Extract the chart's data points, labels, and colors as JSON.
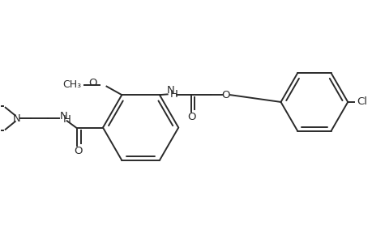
{
  "bg_color": "#ffffff",
  "line_color": "#2a2a2a",
  "line_width": 1.4,
  "font_size": 9.5,
  "figsize": [
    4.6,
    3.0
  ],
  "dpi": 100,
  "xlim": [
    -2.3,
    3.8
  ],
  "ylim": [
    -1.2,
    1.4
  ]
}
